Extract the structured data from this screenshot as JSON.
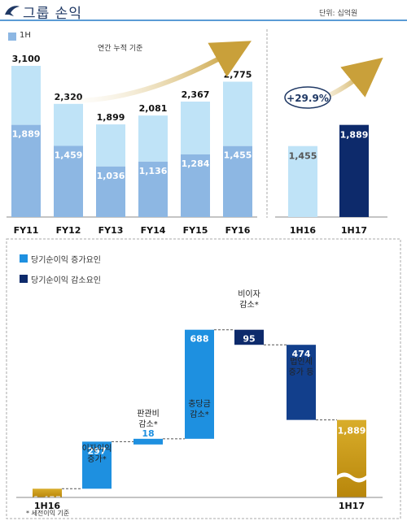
{
  "header": {
    "title": "그룹 손익",
    "unit": "단위: 십억원",
    "logo_icon": "bird-logo-icon"
  },
  "colors": {
    "light_blue": "#bfe3f7",
    "mid_blue": "#8db7e3",
    "bright_blue": "#1e90e0",
    "navy": "#0d2a6b",
    "dark_blue": "#123f8c",
    "gold": "#c8980f",
    "arrow_gold": "#c9a03a"
  },
  "chart_data": [
    {
      "type": "bar",
      "legend": [
        "1H"
      ],
      "annotation": "연간 누적 기준",
      "categories": [
        "FY11",
        "FY12",
        "FY13",
        "FY14",
        "FY15",
        "FY16"
      ],
      "series": [
        {
          "name": "1H",
          "values": [
            1889,
            1459,
            1036,
            1136,
            1284,
            1455
          ]
        },
        {
          "values": [
            3100,
            2320,
            1899,
            2081,
            2367,
            2775
          ]
        }
      ]
    },
    {
      "type": "bar",
      "categories": [
        "1H16",
        "1H17"
      ],
      "values": [
        1455,
        1889
      ],
      "annotation": "+29.9%"
    },
    {
      "type": "bar",
      "subtype": "waterfall",
      "legend": [
        "당기순이익 증가요인",
        "당기순이익 감소요인"
      ],
      "steps": [
        {
          "label": "1H16",
          "value": 1455,
          "kind": "total"
        },
        {
          "label": "이자이익\n증가*",
          "value": 297,
          "kind": "increase"
        },
        {
          "label": "판관비\n감소*",
          "value": 18,
          "kind": "increase"
        },
        {
          "label": "충당금\n감소*",
          "value": 688,
          "kind": "increase"
        },
        {
          "label": "비이자\n감소*",
          "value": -95,
          "kind": "decrease"
        },
        {
          "label": "법인세\n증가 등",
          "value": -474,
          "kind": "decrease"
        },
        {
          "label": "1H17",
          "value": 1889,
          "kind": "total"
        }
      ],
      "footnote": "* 세전이익 기준"
    }
  ]
}
